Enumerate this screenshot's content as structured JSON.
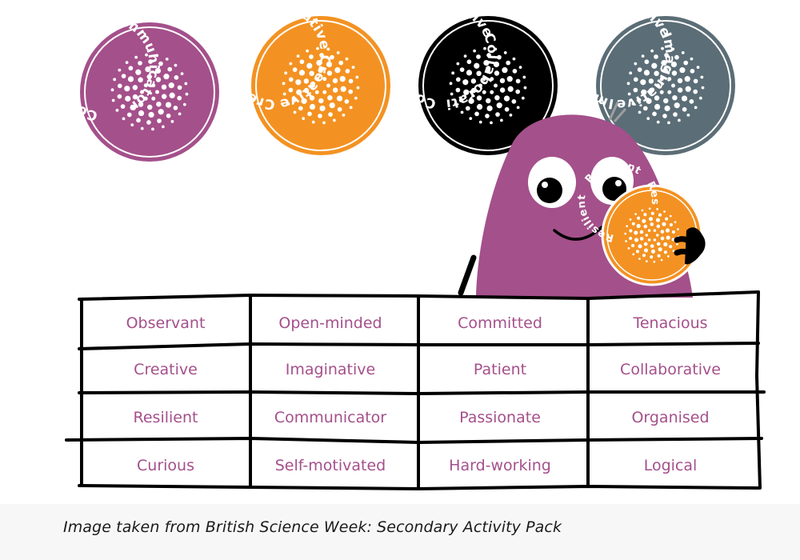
{
  "badges": [
    {
      "color": "#a4508b",
      "texts": [
        "Communicator",
        "Communicator"
      ]
    },
    {
      "color": "#f39222",
      "texts": [
        "Creative",
        "Creative",
        "Creative",
        "Creative"
      ]
    },
    {
      "color": "#000000",
      "texts": [
        "Collaborative",
        "Imaginative",
        "Collaborative"
      ]
    },
    {
      "color": "#5b6d76",
      "texts": [
        "Imaginative",
        "Imaginative",
        "Imaginative"
      ]
    }
  ],
  "held_badge": {
    "color": "#f39222",
    "texts": [
      "Resilient",
      "Resilient",
      "Res"
    ]
  },
  "table": {
    "rows": [
      [
        "Observant",
        "Open-minded",
        "Committed",
        "Tenacious"
      ],
      [
        "Creative",
        "Imaginative",
        "Patient",
        "Collaborative"
      ],
      [
        "Resilient",
        "Communicator",
        "Passionate",
        "Organised"
      ],
      [
        "Curious",
        "Self-motivated",
        "Hard-working",
        "Logical"
      ]
    ]
  },
  "colors": {
    "character": "#a4508b",
    "text": "#a4508b",
    "line": "#000000"
  },
  "caption": "Image taken from British Science Week: Secondary Activity Pack"
}
